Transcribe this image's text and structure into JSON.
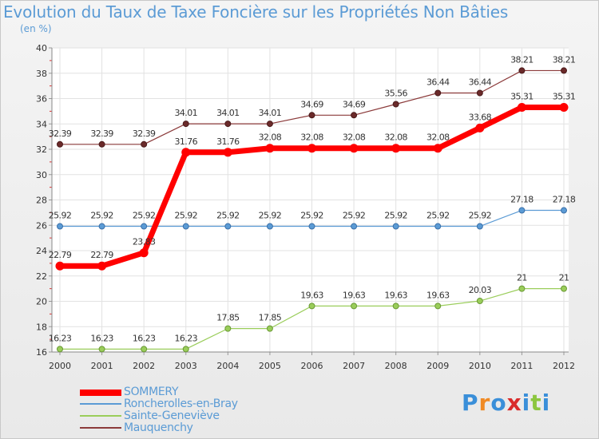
{
  "title": "Evolution du Taux de Taxe Foncière sur les Propriétés Non Bâties",
  "unit_label": "(en %)",
  "logo": {
    "text": "Proxiti",
    "letters": [
      "P",
      "r",
      "o",
      "x",
      "i",
      "t",
      "i"
    ],
    "colors": [
      "#3a8fd9",
      "#f08a24",
      "#3a8fd9",
      "#d92b2b",
      "#3a8fd9",
      "#8cc63f",
      "#3a8fd9"
    ]
  },
  "chart_data": {
    "type": "line",
    "title": "Evolution du Taux de Taxe Foncière sur les Propriétés Non Bâties",
    "ylabel": "(en %)",
    "xlabel": "",
    "x": [
      "2000",
      "2001",
      "2002",
      "2003",
      "2004",
      "2005",
      "2006",
      "2007",
      "2008",
      "2009",
      "2010",
      "2011",
      "2012"
    ],
    "ylim": [
      16,
      40
    ],
    "yticks": [
      "16",
      "18",
      "20",
      "22",
      "24",
      "26",
      "28",
      "30",
      "32",
      "34",
      "36",
      "38",
      "40"
    ],
    "grid": true,
    "legend_position": "bottom-left",
    "series": [
      {
        "name": "SOMMERY",
        "color": "#ff0000",
        "values": [
          22.79,
          22.79,
          23.83,
          31.76,
          31.76,
          32.08,
          32.08,
          32.08,
          32.08,
          32.08,
          33.68,
          35.31,
          35.31
        ],
        "labels": [
          "22.79",
          "22.79",
          "23.83",
          "31.76",
          "31.76",
          "32.08",
          "32.08",
          "32.08",
          "32.08",
          "32.08",
          "33.68",
          "35.31",
          "35.31"
        ]
      },
      {
        "name": "Roncherolles-en-Bray",
        "color": "#5b9bd5",
        "values": [
          25.92,
          25.92,
          25.92,
          25.92,
          25.92,
          25.92,
          25.92,
          25.92,
          25.92,
          25.92,
          25.92,
          27.18,
          27.18
        ],
        "labels": [
          "25.92",
          "25.92",
          "25.92",
          "25.92",
          "25.92",
          "25.92",
          "25.92",
          "25.92",
          "25.92",
          "25.92",
          "25.92",
          "27.18",
          "27.18"
        ]
      },
      {
        "name": "Sainte-Geneviève",
        "color": "#9acd5a",
        "values": [
          16.23,
          16.23,
          16.23,
          16.23,
          17.85,
          17.85,
          19.63,
          19.63,
          19.63,
          19.63,
          20.03,
          21,
          21
        ],
        "labels": [
          "16.23",
          "16.23",
          "16.23",
          "16.23",
          "17.85",
          "17.85",
          "19.63",
          "19.63",
          "19.63",
          "19.63",
          "20.03",
          "21",
          "21"
        ]
      },
      {
        "name": "Mauquenchy",
        "color": "#8b3a3a",
        "values": [
          32.39,
          32.39,
          32.39,
          34.01,
          34.01,
          34.01,
          34.69,
          34.69,
          35.56,
          36.44,
          36.44,
          38.21,
          38.21
        ],
        "labels": [
          "32.39",
          "32.39",
          "32.39",
          "34.01",
          "34.01",
          "34.01",
          "34.69",
          "34.69",
          "35.56",
          "36.44",
          "36.44",
          "38.21",
          "38.21"
        ]
      }
    ]
  }
}
